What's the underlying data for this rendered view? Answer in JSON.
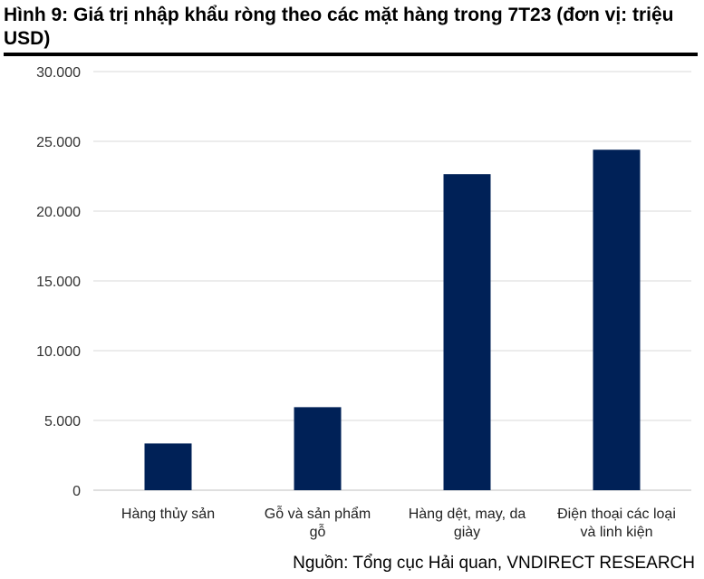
{
  "figure": {
    "title": "Hình 9: Giá trị nhập khẩu ròng theo các mặt hàng trong 7T23 (đơn vị: triệu USD)",
    "source": "Nguồn:  Tổng cục Hải quan, VNDIRECT RESEARCH"
  },
  "chart_data": {
    "type": "bar",
    "title": "Hình 9: Giá trị nhập khẩu ròng theo các mặt hàng trong 7T23 (đơn vị: triệu USD)",
    "categories": [
      [
        "Hàng thủy sản"
      ],
      [
        "Gỗ và sản phẩm",
        "gỗ"
      ],
      [
        "Hàng dệt, may, da",
        "giày"
      ],
      [
        "Điện thoại các loại",
        "và linh kiện"
      ]
    ],
    "values": [
      3350,
      5950,
      22650,
      24400
    ],
    "ylim": [
      0,
      30000
    ],
    "yticks": [
      0,
      5000,
      10000,
      15000,
      20000,
      25000,
      30000
    ],
    "ytick_labels": [
      "0",
      "5.000",
      "10.000",
      "15.000",
      "20.000",
      "25.000",
      "30.000"
    ],
    "xlabel": "",
    "ylabel": "",
    "grid": true,
    "legend": "none",
    "bar_color": "#002157",
    "grid_color": "#d9d9d9"
  }
}
